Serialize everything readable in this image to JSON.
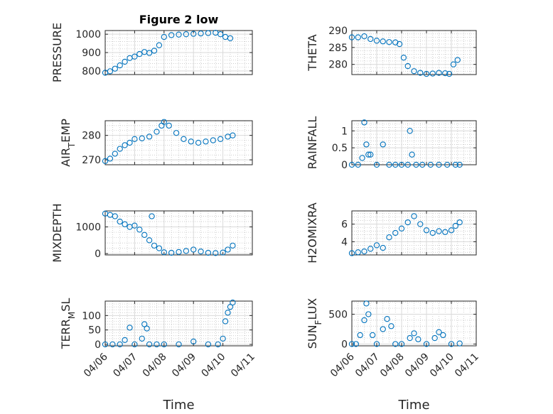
{
  "figure": {
    "title": "Figure 2 low",
    "marker_color": "#0072BD",
    "grid": true
  },
  "chart_data": [
    {
      "type": "scatter",
      "panel": "PRESSURE",
      "ylabel": "PRESSURE",
      "title": "Figure 2 low",
      "ylim": [
        780,
        1020
      ],
      "yticks": [
        800,
        900,
        1000
      ],
      "ytick_labels": [
        "800",
        "900",
        "1000"
      ],
      "x": [
        "2024-04-06T00:00",
        "2024-04-06T04:00",
        "2024-04-06T08:00",
        "2024-04-06T12:00",
        "2024-04-06T16:00",
        "2024-04-06T20:00",
        "2024-04-07T00:00",
        "2024-04-07T04:00",
        "2024-04-07T08:00",
        "2024-04-07T12:00",
        "2024-04-07T16:00",
        "2024-04-07T20:00",
        "2024-04-08T00:00",
        "2024-04-08T06:00",
        "2024-04-08T12:00",
        "2024-04-08T18:00",
        "2024-04-09T00:00",
        "2024-04-09T06:00",
        "2024-04-09T12:00",
        "2024-04-09T18:00",
        "2024-04-09T22:00",
        "2024-04-10T02:00",
        "2024-04-10T06:00"
      ],
      "y": [
        790,
        798,
        812,
        830,
        850,
        870,
        878,
        892,
        903,
        898,
        910,
        940,
        985,
        995,
        998,
        1000,
        1002,
        1004,
        1006,
        1008,
        1000,
        985,
        978
      ]
    },
    {
      "type": "scatter",
      "panel": "THETA",
      "ylabel": "THETA",
      "ylim": [
        277,
        290
      ],
      "yticks": [
        280,
        285,
        290
      ],
      "ytick_labels": [
        "280",
        "285",
        "290"
      ],
      "x": [
        "2024-04-06T00:00",
        "2024-04-06T06:00",
        "2024-04-06T12:00",
        "2024-04-06T18:00",
        "2024-04-07T00:00",
        "2024-04-07T06:00",
        "2024-04-07T12:00",
        "2024-04-07T18:00",
        "2024-04-07T22:00",
        "2024-04-08T02:00",
        "2024-04-08T06:00",
        "2024-04-08T12:00",
        "2024-04-08T18:00",
        "2024-04-09T00:00",
        "2024-04-09T06:00",
        "2024-04-09T12:00",
        "2024-04-09T18:00",
        "2024-04-09T22:00",
        "2024-04-10T02:00",
        "2024-04-10T06:00"
      ],
      "y": [
        288,
        288,
        288.3,
        287.5,
        287,
        286.8,
        286.6,
        286.5,
        286,
        282,
        279.5,
        278,
        277.5,
        277.2,
        277.3,
        277.5,
        277.4,
        277.2,
        280,
        281.3
      ]
    },
    {
      "type": "scatter",
      "panel": "AIR_TEMP",
      "ylabel": "AIR",
      "ylabel_sub": "T",
      "ylabel_rest": "EMP",
      "ylim": [
        268,
        286
      ],
      "yticks": [
        270,
        280
      ],
      "ytick_labels": [
        "270",
        "280"
      ],
      "x": [
        "2024-04-06T00:00",
        "2024-04-06T04:00",
        "2024-04-06T08:00",
        "2024-04-06T12:00",
        "2024-04-06T16:00",
        "2024-04-06T20:00",
        "2024-04-07T00:00",
        "2024-04-07T06:00",
        "2024-04-07T12:00",
        "2024-04-07T18:00",
        "2024-04-07T22:00",
        "2024-04-08T00:00",
        "2024-04-08T04:00",
        "2024-04-08T10:00",
        "2024-04-08T16:00",
        "2024-04-08T22:00",
        "2024-04-09T04:00",
        "2024-04-09T10:00",
        "2024-04-09T16:00",
        "2024-04-09T22:00",
        "2024-04-10T04:00",
        "2024-04-10T08:00"
      ],
      "y": [
        269.5,
        270.5,
        272.5,
        274.5,
        276,
        277,
        278.5,
        278.8,
        279.5,
        281.5,
        284,
        285.5,
        284,
        281,
        278.5,
        277.5,
        277,
        277.5,
        278,
        278.5,
        279.5,
        280
      ]
    },
    {
      "type": "scatter",
      "panel": "RAINFALL",
      "ylabel": "RAINFALL",
      "ylim": [
        0,
        1.3
      ],
      "yticks": [
        0,
        0.5,
        1
      ],
      "ytick_labels": [
        "0",
        "0.5",
        "1"
      ],
      "x": [
        "2024-04-06T00:00",
        "2024-04-06T06:00",
        "2024-04-06T10:00",
        "2024-04-06T12:00",
        "2024-04-06T14:00",
        "2024-04-06T16:00",
        "2024-04-06T18:00",
        "2024-04-07T00:00",
        "2024-04-07T06:00",
        "2024-04-07T12:00",
        "2024-04-07T18:00",
        "2024-04-08T00:00",
        "2024-04-08T06:00",
        "2024-04-08T08:00",
        "2024-04-08T10:00",
        "2024-04-08T14:00",
        "2024-04-08T20:00",
        "2024-04-09T04:00",
        "2024-04-09T12:00",
        "2024-04-09T20:00",
        "2024-04-10T04:00",
        "2024-04-10T08:00"
      ],
      "y": [
        0,
        0,
        0.2,
        1.25,
        0.6,
        0.3,
        0.3,
        0,
        0.6,
        0,
        0,
        0,
        0,
        1.0,
        0.3,
        0,
        0,
        0,
        0,
        0,
        0,
        0
      ]
    },
    {
      "type": "scatter",
      "panel": "MIXDEPTH",
      "ylabel": "MIXDEPTH",
      "ylim": [
        -50,
        1600
      ],
      "yticks": [
        0,
        1000
      ],
      "ytick_labels": [
        "0",
        "1000"
      ],
      "x": [
        "2024-04-06T00:00",
        "2024-04-06T04:00",
        "2024-04-06T08:00",
        "2024-04-06T12:00",
        "2024-04-06T16:00",
        "2024-04-06T20:00",
        "2024-04-07T00:00",
        "2024-04-07T04:00",
        "2024-04-07T08:00",
        "2024-04-07T12:00",
        "2024-04-07T14:00",
        "2024-04-07T16:00",
        "2024-04-07T20:00",
        "2024-04-08T00:00",
        "2024-04-08T06:00",
        "2024-04-08T12:00",
        "2024-04-08T18:00",
        "2024-04-09T00:00",
        "2024-04-09T06:00",
        "2024-04-09T12:00",
        "2024-04-09T18:00",
        "2024-04-10T00:00",
        "2024-04-10T04:00",
        "2024-04-10T08:00"
      ],
      "y": [
        1500,
        1450,
        1400,
        1200,
        1100,
        1000,
        1050,
        900,
        700,
        500,
        1400,
        300,
        200,
        50,
        30,
        60,
        100,
        150,
        80,
        30,
        20,
        40,
        150,
        300
      ]
    },
    {
      "type": "scatter",
      "panel": "H2OMIXRA",
      "ylabel": "H2OMIXRA",
      "ylim": [
        2.5,
        7.5
      ],
      "yticks": [
        4,
        6
      ],
      "ytick_labels": [
        "4",
        "6"
      ],
      "x": [
        "2024-04-06T00:00",
        "2024-04-06T06:00",
        "2024-04-06T12:00",
        "2024-04-06T18:00",
        "2024-04-07T00:00",
        "2024-04-07T06:00",
        "2024-04-07T12:00",
        "2024-04-07T18:00",
        "2024-04-08T00:00",
        "2024-04-08T06:00",
        "2024-04-08T12:00",
        "2024-04-08T18:00",
        "2024-04-09T00:00",
        "2024-04-09T06:00",
        "2024-04-09T12:00",
        "2024-04-09T18:00",
        "2024-04-10T00:00",
        "2024-04-10T04:00",
        "2024-04-10T08:00"
      ],
      "y": [
        2.7,
        2.8,
        2.9,
        3.2,
        3.6,
        3.3,
        4.5,
        5.0,
        5.5,
        6.2,
        6.9,
        6.0,
        5.3,
        5.0,
        5.2,
        5.1,
        5.3,
        5.8,
        6.2
      ]
    },
    {
      "type": "scatter",
      "panel": "TERR_MSL",
      "ylabel": "TERR",
      "ylabel_sub": "M",
      "ylabel_rest": "SL",
      "xlabel": "Time",
      "ylim": [
        -5,
        150
      ],
      "yticks": [
        0,
        50,
        100
      ],
      "ytick_labels": [
        "0",
        "50",
        "100"
      ],
      "xlim": [
        "2024-04-06T00:00",
        "2024-04-11T00:00"
      ],
      "xticks": [
        "04/06",
        "04/07",
        "04/08",
        "04/09",
        "04/10",
        "04/11"
      ],
      "x": [
        "2024-04-06T00:00",
        "2024-04-06T06:00",
        "2024-04-06T12:00",
        "2024-04-06T16:00",
        "2024-04-06T20:00",
        "2024-04-07T00:00",
        "2024-04-07T06:00",
        "2024-04-07T08:00",
        "2024-04-07T10:00",
        "2024-04-07T12:00",
        "2024-04-07T18:00",
        "2024-04-08T00:00",
        "2024-04-08T12:00",
        "2024-04-09T00:00",
        "2024-04-09T12:00",
        "2024-04-09T20:00",
        "2024-04-10T00:00",
        "2024-04-10T02:00",
        "2024-04-10T04:00",
        "2024-04-10T06:00",
        "2024-04-10T08:00"
      ],
      "y": [
        0,
        0,
        0,
        15,
        58,
        0,
        20,
        70,
        55,
        0,
        0,
        0,
        0,
        10,
        0,
        0,
        20,
        80,
        110,
        130,
        145
      ]
    },
    {
      "type": "scatter",
      "panel": "SUN_FLUX",
      "ylabel": "SUN",
      "ylabel_sub": "F",
      "ylabel_rest": "LUX",
      "xlabel": "Time",
      "ylim": [
        -30,
        720
      ],
      "yticks": [
        0,
        500
      ],
      "ytick_labels": [
        "0",
        "500"
      ],
      "xlim": [
        "2024-04-06T00:00",
        "2024-04-11T00:00"
      ],
      "xticks": [
        "04/06",
        "04/07",
        "04/08",
        "04/09",
        "04/10",
        "04/11"
      ],
      "x": [
        "2024-04-06T00:00",
        "2024-04-06T04:00",
        "2024-04-06T08:00",
        "2024-04-06T12:00",
        "2024-04-06T14:00",
        "2024-04-06T16:00",
        "2024-04-06T20:00",
        "2024-04-07T00:00",
        "2024-04-07T06:00",
        "2024-04-07T10:00",
        "2024-04-07T14:00",
        "2024-04-07T18:00",
        "2024-04-08T00:00",
        "2024-04-08T08:00",
        "2024-04-08T12:00",
        "2024-04-08T16:00",
        "2024-04-09T00:00",
        "2024-04-09T08:00",
        "2024-04-09T12:00",
        "2024-04-09T16:00",
        "2024-04-10T00:00",
        "2024-04-10T08:00"
      ],
      "y": [
        0,
        0,
        150,
        400,
        680,
        500,
        150,
        0,
        250,
        420,
        300,
        0,
        0,
        100,
        180,
        80,
        0,
        100,
        200,
        150,
        0,
        10
      ]
    }
  ]
}
